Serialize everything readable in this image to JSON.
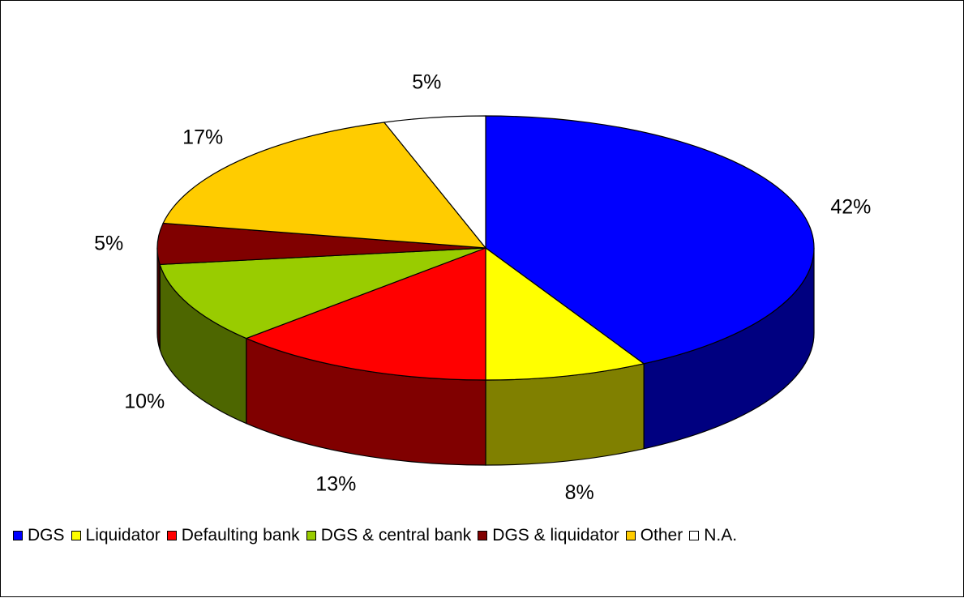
{
  "chart_data": {
    "type": "pie",
    "title": "",
    "slices": [
      {
        "label": "DGS",
        "value": 42,
        "data_label": "42%",
        "color": "#0000ff",
        "side_color": "#000080"
      },
      {
        "label": "Liquidator",
        "value": 8,
        "data_label": "8%",
        "color": "#ffff00",
        "side_color": "#808000"
      },
      {
        "label": "Defaulting bank",
        "value": 13,
        "data_label": "13%",
        "color": "#ff0000",
        "side_color": "#800000"
      },
      {
        "label": "DGS & central bank",
        "value": 10,
        "data_label": "10%",
        "color": "#99cc00",
        "side_color": "#4d6600"
      },
      {
        "label": "DGS & liquidator",
        "value": 5,
        "data_label": "5%",
        "color": "#800000",
        "side_color": "#400000"
      },
      {
        "label": "Other",
        "value": 17,
        "data_label": "17%",
        "color": "#ffcc00",
        "side_color": "#806600"
      },
      {
        "label": "N.A.",
        "value": 5,
        "data_label": "5%",
        "color": "#ffffff",
        "side_color": "#e0e0e0"
      }
    ],
    "legend_position": "bottom"
  }
}
